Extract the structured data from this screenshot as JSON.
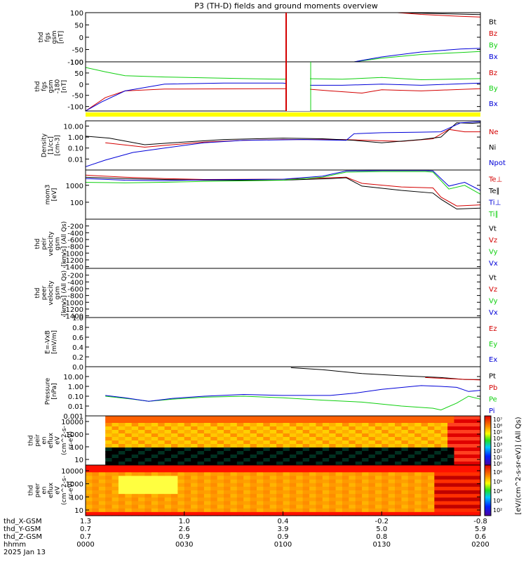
{
  "page": {
    "title": "P3 (TH-D) fields and ground moments overview"
  },
  "colors": {
    "black": "#000000",
    "red": "#d40000",
    "green": "#10d010",
    "blue": "#0000d8",
    "yellow": "#ffff00"
  },
  "chart_data": [
    {
      "type": "line",
      "id": "fgs_gsm",
      "ylabel": [
        "thd",
        "fgs",
        "gsm",
        "[nT]"
      ],
      "ylim": [
        -100,
        100
      ],
      "yticks": [
        "100",
        "50",
        "0",
        "-50",
        "-100"
      ],
      "series": [
        {
          "name": "Bt",
          "color": "black",
          "points": [
            [
              0.79,
              100
            ],
            [
              1.0,
              92
            ]
          ]
        },
        {
          "name": "Bz",
          "color": "red",
          "points": [
            [
              0.79,
              100
            ],
            [
              0.85,
              93
            ],
            [
              0.95,
              85
            ],
            [
              1.0,
              82
            ]
          ]
        },
        {
          "name": "By",
          "color": "green",
          "points": [
            [
              0.68,
              -100
            ],
            [
              0.75,
              -85
            ],
            [
              0.85,
              -70
            ],
            [
              0.95,
              -62
            ],
            [
              1.0,
              -58
            ]
          ]
        },
        {
          "name": "Bx",
          "color": "blue",
          "points": [
            [
              0.68,
              -100
            ],
            [
              0.75,
              -80
            ],
            [
              0.85,
              -60
            ],
            [
              0.95,
              -48
            ],
            [
              1.0,
              -45
            ]
          ]
        }
      ]
    },
    {
      "type": "line",
      "id": "fgs_gsm_m180",
      "ylabel": [
        "thd",
        "fgs",
        "gsm",
        "-180",
        "[nT]"
      ],
      "ylim": [
        -120,
        100
      ],
      "yticks": [
        "100",
        "50",
        "0",
        "-50",
        "-100"
      ],
      "series": [
        {
          "name": "Bz",
          "color": "red",
          "points": [
            [
              0.0,
              -120
            ],
            [
              0.05,
              -60
            ],
            [
              0.1,
              -30
            ],
            [
              0.2,
              -22
            ],
            [
              0.5,
              -20
            ],
            [
              0.55,
              -20
            ],
            [
              0.62,
              -30
            ],
            [
              0.7,
              -40
            ],
            [
              0.75,
              -25
            ],
            [
              0.85,
              -30
            ],
            [
              1.0,
              -20
            ]
          ]
        },
        {
          "name": "By",
          "color": "green",
          "points": [
            [
              0.0,
              75
            ],
            [
              0.05,
              55
            ],
            [
              0.1,
              38
            ],
            [
              0.2,
              32
            ],
            [
              0.4,
              25
            ],
            [
              0.5,
              22
            ],
            [
              0.55,
              25
            ],
            [
              0.65,
              22
            ],
            [
              0.75,
              30
            ],
            [
              0.85,
              20
            ],
            [
              1.0,
              25
            ]
          ]
        },
        {
          "name": "Bx",
          "color": "blue",
          "points": [
            [
              0.0,
              -120
            ],
            [
              0.04,
              -80
            ],
            [
              0.1,
              -30
            ],
            [
              0.2,
              0
            ],
            [
              0.35,
              5
            ],
            [
              0.5,
              5
            ],
            [
              0.55,
              -5
            ],
            [
              0.65,
              -5
            ],
            [
              0.75,
              0
            ],
            [
              0.85,
              -5
            ],
            [
              1.0,
              5
            ]
          ]
        }
      ]
    },
    {
      "type": "line",
      "id": "density",
      "ylabel": [
        "Density",
        "[1/cc]",
        "[cm-3]"
      ],
      "ylim": [
        0.001,
        30
      ],
      "log": true,
      "yticks": [
        "10.00",
        "1.00",
        "0.10",
        "0.01"
      ],
      "series": [
        {
          "name": "Ne",
          "color": "red",
          "points": [
            [
              0.05,
              0.3
            ],
            [
              0.15,
              0.12
            ],
            [
              0.22,
              0.2
            ],
            [
              0.3,
              0.35
            ],
            [
              0.4,
              0.5
            ],
            [
              0.5,
              0.6
            ],
            [
              0.65,
              0.6
            ],
            [
              0.8,
              0.4
            ],
            [
              0.88,
              0.7
            ],
            [
              0.92,
              5
            ],
            [
              0.96,
              3
            ],
            [
              1.0,
              3
            ]
          ]
        },
        {
          "name": "Ni",
          "color": "black",
          "points": [
            [
              0.0,
              1.2
            ],
            [
              0.06,
              0.8
            ],
            [
              0.15,
              0.2
            ],
            [
              0.22,
              0.3
            ],
            [
              0.35,
              0.6
            ],
            [
              0.5,
              0.8
            ],
            [
              0.6,
              0.7
            ],
            [
              0.68,
              0.5
            ],
            [
              0.75,
              0.3
            ],
            [
              0.85,
              0.6
            ],
            [
              0.9,
              1.0
            ],
            [
              0.94,
              20
            ],
            [
              0.98,
              18
            ],
            [
              1.0,
              20
            ]
          ]
        },
        {
          "name": "Npot",
          "color": "blue",
          "points": [
            [
              0.0,
              0.002
            ],
            [
              0.05,
              0.008
            ],
            [
              0.12,
              0.04
            ],
            [
              0.2,
              0.1
            ],
            [
              0.3,
              0.3
            ],
            [
              0.4,
              0.5
            ],
            [
              0.55,
              0.6
            ],
            [
              0.66,
              0.5
            ],
            [
              0.68,
              2
            ],
            [
              0.75,
              2.5
            ],
            [
              0.85,
              2.8
            ],
            [
              0.9,
              3
            ],
            [
              0.95,
              20
            ],
            [
              1.0,
              25
            ]
          ]
        }
      ]
    },
    {
      "type": "line",
      "id": "moments",
      "ylabel": [
        "mom3",
        "[eV]"
      ],
      "ylim": [
        10,
        8000
      ],
      "log": true,
      "yticks": [
        "1000",
        "100"
      ],
      "series": [
        {
          "name": "Te⊥",
          "color": "red",
          "points": [
            [
              0.0,
              4000
            ],
            [
              0.1,
              3000
            ],
            [
              0.2,
              2500
            ],
            [
              0.3,
              2200
            ],
            [
              0.5,
              2300
            ],
            [
              0.62,
              2800
            ],
            [
              0.66,
              3000
            ],
            [
              0.7,
              1300
            ],
            [
              0.8,
              800
            ],
            [
              0.88,
              700
            ],
            [
              0.9,
              200
            ],
            [
              0.94,
              60
            ],
            [
              1.0,
              70
            ]
          ]
        },
        {
          "name": "Te∥",
          "color": "black",
          "points": [
            [
              0.0,
              3000
            ],
            [
              0.1,
              2500
            ],
            [
              0.2,
              2200
            ],
            [
              0.3,
              2000
            ],
            [
              0.5,
              2000
            ],
            [
              0.62,
              2500
            ],
            [
              0.66,
              2800
            ],
            [
              0.7,
              900
            ],
            [
              0.8,
              500
            ],
            [
              0.88,
              350
            ],
            [
              0.9,
              150
            ],
            [
              0.94,
              40
            ],
            [
              1.0,
              45
            ]
          ]
        },
        {
          "name": "Ti⊥",
          "color": "blue",
          "points": [
            [
              0.0,
              2500
            ],
            [
              0.1,
              2000
            ],
            [
              0.2,
              1900
            ],
            [
              0.3,
              2100
            ],
            [
              0.5,
              2300
            ],
            [
              0.6,
              3500
            ],
            [
              0.66,
              7000
            ],
            [
              0.75,
              7500
            ],
            [
              0.86,
              7500
            ],
            [
              0.88,
              7000
            ],
            [
              0.92,
              900
            ],
            [
              0.96,
              1500
            ],
            [
              1.0,
              500
            ]
          ]
        },
        {
          "name": "Ti∥",
          "color": "green",
          "points": [
            [
              0.0,
              1500
            ],
            [
              0.1,
              1400
            ],
            [
              0.2,
              1500
            ],
            [
              0.3,
              1700
            ],
            [
              0.5,
              2000
            ],
            [
              0.6,
              3000
            ],
            [
              0.66,
              6000
            ],
            [
              0.75,
              6500
            ],
            [
              0.86,
              6500
            ],
            [
              0.88,
              6000
            ],
            [
              0.92,
              600
            ],
            [
              0.96,
              1000
            ],
            [
              1.0,
              300
            ]
          ]
        }
      ]
    },
    {
      "type": "line",
      "id": "peir_velocity",
      "ylabel": [
        "thd",
        "peir",
        "velocity",
        "gsm",
        "[km/s] (All Qs)"
      ],
      "ylim": [
        -1450,
        0
      ],
      "yticks": [
        "-200",
        "-400",
        "-600",
        "-800",
        "-1000",
        "-1200",
        "-1400"
      ],
      "series": [
        {
          "name": "Vt",
          "color": "black",
          "points": []
        },
        {
          "name": "Vz",
          "color": "red",
          "points": []
        },
        {
          "name": "Vy",
          "color": "green",
          "points": []
        },
        {
          "name": "Vx",
          "color": "blue",
          "points": []
        }
      ]
    },
    {
      "type": "line",
      "id": "peer_velocity",
      "ylabel": [
        "thd",
        "peer",
        "velocity",
        "gsm",
        "[km/s] (All Qs)"
      ],
      "ylim": [
        -1450,
        0
      ],
      "yticks": [
        "-200",
        "-400",
        "-600",
        "-800",
        "-1000",
        "-1200",
        "-1400"
      ],
      "series": [
        {
          "name": "Vt",
          "color": "black",
          "points": []
        },
        {
          "name": "Vz",
          "color": "red",
          "points": []
        },
        {
          "name": "Vy",
          "color": "green",
          "points": []
        },
        {
          "name": "Vx",
          "color": "blue",
          "points": []
        }
      ]
    },
    {
      "type": "line",
      "id": "e_field",
      "ylabel": [
        "E=-VxB",
        "[mV/m]"
      ],
      "ylim": [
        0,
        1
      ],
      "yticks": [
        "1.0",
        "0.8",
        "0.6",
        "0.4",
        "0.2",
        "0.0"
      ],
      "series": [
        {
          "name": "Ez",
          "color": "red",
          "points": []
        },
        {
          "name": "Ey",
          "color": "green",
          "points": []
        },
        {
          "name": "Ex",
          "color": "blue",
          "points": []
        }
      ]
    },
    {
      "type": "line",
      "id": "pressure",
      "ylabel": [
        "Pressure",
        "[nPa]"
      ],
      "ylim": [
        0.001,
        100
      ],
      "log": true,
      "yticks": [
        "10.00",
        "1.00",
        "0.10",
        "0.01",
        "0.001"
      ],
      "series": [
        {
          "name": "Pt",
          "color": "black",
          "points": [
            [
              0.52,
              80
            ],
            [
              0.6,
              50
            ],
            [
              0.7,
              20
            ],
            [
              0.8,
              12
            ],
            [
              0.9,
              8
            ],
            [
              0.96,
              5
            ],
            [
              1.0,
              5
            ]
          ]
        },
        {
          "name": "Pb",
          "color": "red",
          "points": [
            [
              0.86,
              8
            ],
            [
              0.92,
              6
            ],
            [
              1.0,
              4.5
            ]
          ]
        },
        {
          "name": "Pe",
          "color": "green",
          "points": [
            [
              0.05,
              0.1
            ],
            [
              0.12,
              0.05
            ],
            [
              0.16,
              0.03
            ],
            [
              0.22,
              0.05
            ],
            [
              0.3,
              0.08
            ],
            [
              0.4,
              0.1
            ],
            [
              0.5,
              0.07
            ],
            [
              0.6,
              0.04
            ],
            [
              0.7,
              0.025
            ],
            [
              0.8,
              0.01
            ],
            [
              0.88,
              0.006
            ],
            [
              0.9,
              0.004
            ],
            [
              0.94,
              0.02
            ],
            [
              0.97,
              0.1
            ],
            [
              1.0,
              0.05
            ]
          ]
        },
        {
          "name": "Pi",
          "color": "blue",
          "points": [
            [
              0.05,
              0.12
            ],
            [
              0.1,
              0.07
            ],
            [
              0.16,
              0.03
            ],
            [
              0.22,
              0.06
            ],
            [
              0.3,
              0.1
            ],
            [
              0.4,
              0.15
            ],
            [
              0.5,
              0.12
            ],
            [
              0.62,
              0.12
            ],
            [
              0.68,
              0.2
            ],
            [
              0.75,
              0.5
            ],
            [
              0.85,
              1.2
            ],
            [
              0.9,
              1.0
            ],
            [
              0.94,
              0.8
            ],
            [
              0.97,
              0.3
            ],
            [
              1.0,
              0.4
            ]
          ]
        }
      ]
    },
    {
      "type": "heatmap",
      "id": "peir_spectrogram",
      "ylabel": [
        "thd",
        "peir",
        "en",
        "eflux",
        "eV",
        "(cm^2-s-",
        "sr-eV)"
      ],
      "yticks": [
        "10000",
        "1000",
        "100",
        "10"
      ]
    },
    {
      "type": "heatmap",
      "id": "peer_spectrogram",
      "ylabel": [
        "thd",
        "peer",
        "en",
        "eflux",
        "eV",
        "(cm^2-s-",
        "sr-eV)"
      ],
      "yticks": [
        "10000",
        "1000",
        "100",
        "10"
      ]
    }
  ],
  "colorbar": {
    "label": "[eV/(cm^2-s-sr-eV)] (All Qs)",
    "top_ticks": [
      "10⁷",
      "10⁶",
      "10⁵",
      "10⁴",
      "10³",
      "10²",
      "10¹",
      "10⁰"
    ],
    "bottom_ticks": [
      "10⁶",
      "10⁵",
      "10⁴",
      "10³",
      "10²"
    ]
  },
  "x_axis": {
    "row_labels": [
      "thd_X-GSM",
      "thd_Y-GSM",
      "thd_Z-GSM",
      "hhmm",
      "2025 Jan 13"
    ],
    "ticks": [
      {
        "x_gsm": "1.3",
        "y_gsm": "0.7",
        "z_gsm": "0.7",
        "hhmm": "0000"
      },
      {
        "x_gsm": "1.0",
        "y_gsm": "2.6",
        "z_gsm": "0.9",
        "hhmm": "0030"
      },
      {
        "x_gsm": "0.4",
        "y_gsm": "3.9",
        "z_gsm": "0.9",
        "hhmm": "0100"
      },
      {
        "x_gsm": "-0.2",
        "y_gsm": "5.0",
        "z_gsm": "0.8",
        "hhmm": "0130"
      },
      {
        "x_gsm": "-0.8",
        "y_gsm": "5.9",
        "z_gsm": "0.6",
        "hhmm": "0200"
      }
    ]
  }
}
